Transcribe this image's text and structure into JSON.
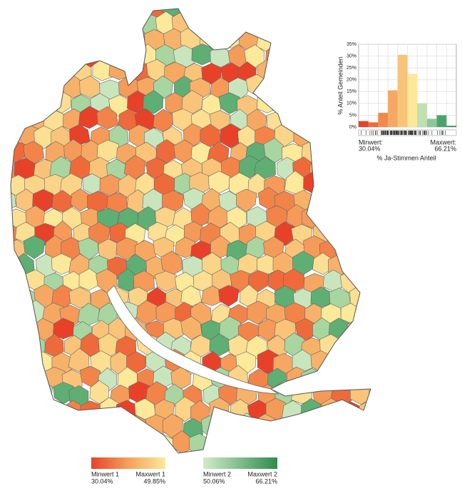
{
  "chart_data": {
    "type": "bar",
    "ylabel": "% Anteil Gemeinden",
    "xlabel": "% Ja-Stimmen Anteil",
    "min_label": "Minwert:",
    "min_value": "30.04%",
    "max_label": "Maxwert:",
    "max_value": "66.21%",
    "categories": [
      null,
      null,
      null,
      null,
      null,
      null,
      null,
      null,
      null,
      null
    ],
    "series": [
      {
        "colors": [
          "#e8412a",
          "#ef6a3a",
          "#f28a4c",
          "#f5a862",
          "#f8c47a",
          "#fbe89a",
          "#bfe0b0",
          "#8cc79a",
          "#4aa46a",
          "#2e8b4e"
        ],
        "values": [
          2.5,
          2,
          6,
          15.5,
          30.5,
          22.5,
          10,
          3.5,
          5,
          0.5
        ]
      }
    ],
    "ylim": [
      0,
      35
    ],
    "yticks": [
      {
        "value": 0,
        "label": "0%"
      },
      {
        "value": 5,
        "label": "5%"
      },
      {
        "value": 10,
        "label": "10%"
      },
      {
        "value": 15,
        "label": "15%"
      },
      {
        "value": 20,
        "label": "20%"
      },
      {
        "value": 25,
        "label": "25%"
      },
      {
        "value": 30,
        "label": "30%"
      },
      {
        "value": 35,
        "label": "35%"
      }
    ],
    "grid": true,
    "legend": [
      {
        "name": "Minwert 1",
        "value": "30.04%"
      },
      {
        "name": "Maxwert 1",
        "value": "49.85%"
      },
      {
        "name": "Minwert 2",
        "value": "50.06%"
      },
      {
        "name": "Maxwert 2",
        "value": "66.21%"
      }
    ]
  }
}
